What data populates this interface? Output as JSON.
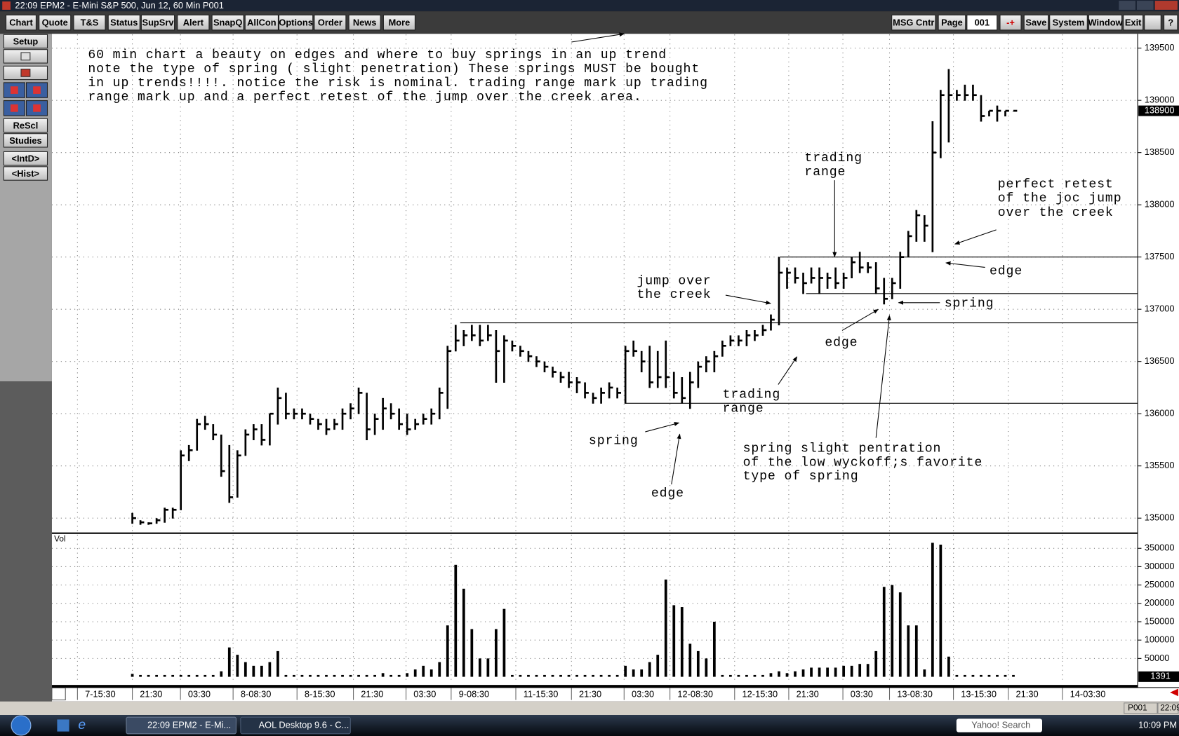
{
  "window": {
    "title": "22:09   EPM2 - E-Mini S&P 500, Jun 12, 60 Min   P001"
  },
  "toolbar": {
    "left": [
      "Chart",
      "Quote",
      "T&S",
      "Status",
      "SupSrv",
      "Alert",
      "SnapQ",
      "AllCon",
      "Options",
      "Order",
      "News",
      "More"
    ],
    "right": [
      "MSG Cntr",
      "Page",
      "001",
      "-+",
      "Save",
      "System",
      "Window",
      "Exit",
      "?"
    ]
  },
  "sidebar": [
    "Setup",
    "ReScl",
    "Studies",
    "<IntD>",
    "<Hist>"
  ],
  "chart_data": {
    "type": "ohlc",
    "color": "#000000",
    "grid": true,
    "annotations": [
      {
        "lines": [
          "60 min chart a beauty on edges and where to buy springs in an up trend",
          "note the type of spring ( slight penetration) These springs MUST be bought",
          "in up trends!!!!. notice the risk is nominal. trading range mark up trading",
          "range mark up and a perfect retest of the jump over the creek area."
        ]
      },
      {
        "lines": [
          "trading",
          "range"
        ]
      },
      {
        "lines": [
          "perfect retest",
          "of the joc jump",
          "over the creek"
        ]
      },
      {
        "lines": [
          "jump over",
          "the creek"
        ]
      },
      {
        "lines": [
          "edge"
        ]
      },
      {
        "lines": [
          "spring"
        ]
      },
      {
        "lines": [
          "edge"
        ]
      },
      {
        "lines": [
          "trading",
          "range"
        ]
      },
      {
        "lines": [
          "spring"
        ]
      },
      {
        "lines": [
          "edge"
        ]
      },
      {
        "lines": [
          "spring slight pentration",
          "of the low wyckoff;s  favorite",
          "type of spring"
        ]
      }
    ],
    "bars": [
      [
        135050,
        134950,
        135000
      ],
      [
        134980,
        134940,
        134960
      ],
      [
        134960,
        134940,
        134950
      ],
      [
        135000,
        134950,
        134980
      ],
      [
        135100,
        134960,
        135080
      ],
      [
        135100,
        135000,
        135080
      ],
      [
        135650,
        135080,
        135600
      ],
      [
        135700,
        135550,
        135650
      ],
      [
        135950,
        135650,
        135900
      ],
      [
        135980,
        135850,
        135900
      ],
      [
        135900,
        135750,
        135800
      ],
      [
        135800,
        135400,
        135450
      ],
      [
        135700,
        135150,
        135200
      ],
      [
        135650,
        135200,
        135600
      ],
      [
        135850,
        135600,
        135800
      ],
      [
        135900,
        135750,
        135850
      ],
      [
        135900,
        135700,
        135750
      ],
      [
        136000,
        135700,
        136000
      ],
      [
        136250,
        135900,
        136150
      ],
      [
        136200,
        135950,
        136000
      ],
      [
        136050,
        135950,
        136000
      ],
      [
        136050,
        135950,
        136000
      ],
      [
        136000,
        135900,
        135950
      ],
      [
        135950,
        135850,
        135900
      ],
      [
        135950,
        135800,
        135850
      ],
      [
        135950,
        135850,
        135900
      ],
      [
        136050,
        135850,
        136000
      ],
      [
        136100,
        135950,
        136050
      ],
      [
        136250,
        136000,
        136200
      ],
      [
        136200,
        135750,
        135850
      ],
      [
        136000,
        135800,
        135950
      ],
      [
        136150,
        135850,
        136050
      ],
      [
        136100,
        135950,
        136000
      ],
      [
        136050,
        135850,
        135900
      ],
      [
        136000,
        135800,
        135850
      ],
      [
        135950,
        135850,
        135900
      ],
      [
        136000,
        135900,
        135950
      ],
      [
        136050,
        135900,
        136000
      ],
      [
        136250,
        135950,
        136200
      ],
      [
        136650,
        136050,
        136600
      ],
      [
        136850,
        136600,
        136700
      ],
      [
        136800,
        136650,
        136750
      ],
      [
        136850,
        136700,
        136750
      ],
      [
        136850,
        136650,
        136700
      ],
      [
        136850,
        136700,
        136750
      ],
      [
        136800,
        136300,
        136600
      ],
      [
        136750,
        136300,
        136700
      ],
      [
        136700,
        136600,
        136650
      ],
      [
        136650,
        136550,
        136600
      ],
      [
        136600,
        136500,
        136550
      ],
      [
        136550,
        136450,
        136500
      ],
      [
        136500,
        136400,
        136450
      ],
      [
        136450,
        136350,
        136400
      ],
      [
        136400,
        136300,
        136350
      ],
      [
        136400,
        136250,
        136300
      ],
      [
        136350,
        136200,
        136300
      ],
      [
        136300,
        136150,
        136200
      ],
      [
        136200,
        136100,
        136150
      ],
      [
        136250,
        136100,
        136200
      ],
      [
        136300,
        136150,
        136250
      ],
      [
        136250,
        136150,
        136200
      ],
      [
        136650,
        136100,
        136600
      ],
      [
        136700,
        136550,
        136600
      ],
      [
        136600,
        136400,
        136500
      ],
      [
        136650,
        136250,
        136300
      ],
      [
        136600,
        136250,
        136350
      ],
      [
        136700,
        136250,
        136350
      ],
      [
        136400,
        136150,
        136200
      ],
      [
        136350,
        136100,
        136150
      ],
      [
        136400,
        136050,
        136300
      ],
      [
        136500,
        136250,
        136450
      ],
      [
        136550,
        136400,
        136500
      ],
      [
        136600,
        136400,
        136550
      ],
      [
        136700,
        136550,
        136650
      ],
      [
        136750,
        136650,
        136700
      ],
      [
        136750,
        136650,
        136700
      ],
      [
        136800,
        136650,
        136750
      ],
      [
        136800,
        136700,
        136750
      ],
      [
        136850,
        136750,
        136800
      ],
      [
        136950,
        136800,
        136900
      ],
      [
        137500,
        136850,
        137350
      ],
      [
        137400,
        137200,
        137350
      ],
      [
        137400,
        137250,
        137300
      ],
      [
        137350,
        137150,
        137250
      ],
      [
        137400,
        137250,
        137300
      ],
      [
        137400,
        137150,
        137300
      ],
      [
        137350,
        137200,
        137300
      ],
      [
        137400,
        137200,
        137250
      ],
      [
        137350,
        137200,
        137300
      ],
      [
        137500,
        137300,
        137450
      ],
      [
        137550,
        137350,
        137400
      ],
      [
        137450,
        137350,
        137400
      ],
      [
        137450,
        137150,
        137200
      ],
      [
        137300,
        137050,
        137100
      ],
      [
        137300,
        137100,
        137250
      ],
      [
        137550,
        137200,
        137500
      ],
      [
        137750,
        137500,
        137700
      ],
      [
        137950,
        137650,
        137900
      ],
      [
        137900,
        137650,
        137800
      ],
      [
        138800,
        137550,
        138500
      ],
      [
        139100,
        138450,
        139050
      ],
      [
        139300,
        138600,
        139050
      ],
      [
        139100,
        139000,
        139050
      ],
      [
        139150,
        139000,
        139050
      ],
      [
        139150,
        139000,
        139050
      ],
      [
        139050,
        138800,
        138850
      ],
      [
        138900,
        138850,
        138900
      ],
      [
        138950,
        138800,
        138900
      ],
      [
        138900,
        138850,
        138900
      ],
      [
        138900,
        138900,
        138900
      ]
    ],
    "ylim": [
      134870,
      139630
    ],
    "yticks": [
      135000,
      135500,
      136000,
      136500,
      137000,
      137500,
      138000,
      138500,
      139000,
      139500
    ],
    "last_price": 138900,
    "levels": [
      137500,
      137150,
      136870,
      136100
    ],
    "xticks": [
      "7-15:30",
      "21:30",
      "03:30",
      "8-08:30",
      "8-15:30",
      "21:30",
      "03:30",
      "9-08:30",
      "11-15:30",
      "21:30",
      "03:30",
      "12-08:30",
      "12-15:30",
      "21:30",
      "03:30",
      "13-08:30",
      "13-15:30",
      "21:30",
      "14-03:30"
    ],
    "volume": {
      "label": "Vol",
      "values": [
        8000,
        5000,
        5000,
        5000,
        5000,
        5000,
        5000,
        5000,
        5000,
        5000,
        5000,
        15000,
        80000,
        60000,
        40000,
        30000,
        30000,
        40000,
        70000,
        5000,
        5000,
        5000,
        5000,
        5000,
        5000,
        5000,
        5000,
        5000,
        5000,
        5000,
        5000,
        10000,
        5000,
        5000,
        10000,
        20000,
        30000,
        20000,
        40000,
        140000,
        305000,
        240000,
        130000,
        50000,
        50000,
        130000,
        185000,
        5000,
        5000,
        5000,
        5000,
        5000,
        5000,
        5000,
        5000,
        5000,
        5000,
        5000,
        5000,
        5000,
        5000,
        30000,
        20000,
        20000,
        40000,
        60000,
        265000,
        195000,
        190000,
        90000,
        70000,
        50000,
        150000,
        5000,
        5000,
        5000,
        5000,
        5000,
        5000,
        10000,
        15000,
        10000,
        15000,
        20000,
        25000,
        25000,
        25000,
        25000,
        30000,
        30000,
        35000,
        35000,
        70000,
        245000,
        250000,
        230000,
        140000,
        140000,
        20000,
        365000,
        360000,
        55000,
        5000,
        5000,
        5000,
        5000,
        5000,
        5000,
        5000,
        5000
      ],
      "ylim": [
        -16000,
        387000
      ],
      "yticks": [
        50000,
        100000,
        150000,
        200000,
        250000,
        300000,
        350000
      ],
      "last_label": "1391"
    }
  },
  "status": {
    "page": "P001",
    "time": "22:09"
  },
  "taskbar": {
    "items": [
      "22:09   EPM2 - E-Mi...",
      "AOL Desktop 9.6 - C..."
    ],
    "search": "Yahoo! Search",
    "clock": "10:09 PM"
  }
}
